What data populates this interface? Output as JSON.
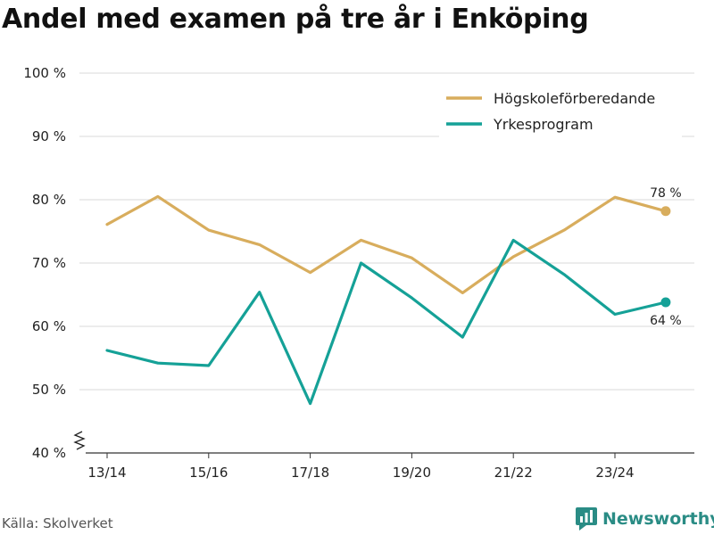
{
  "title": "Andel med examen på tre år i Enköping",
  "source": "Källa: Skolverket",
  "brand": {
    "name": "Newsworthy",
    "icon": "newsworthy-logo-icon",
    "color": "#2a8c85"
  },
  "chart_data": {
    "type": "line",
    "title": "Andel med examen på tre år i Enköping",
    "x": [
      "13/14",
      "14/15",
      "15/16",
      "16/17",
      "17/18",
      "18/19",
      "19/20",
      "20/21",
      "21/22",
      "22/23",
      "23/24",
      "24/25"
    ],
    "x_tick_labels": [
      "13/14",
      "15/16",
      "17/18",
      "19/20",
      "21/22",
      "23/24"
    ],
    "ylim": [
      40,
      100
    ],
    "y_ticks": [
      40,
      50,
      60,
      70,
      80,
      90,
      100
    ],
    "y_tick_suffix": " %",
    "axis_break": true,
    "grid": true,
    "legend_position": "top-right",
    "series": [
      {
        "name": "Högskoleförberedande",
        "color": "#d8ad5d",
        "values": [
          76.1,
          80.5,
          75.2,
          72.9,
          68.5,
          73.6,
          70.8,
          65.3,
          71.0,
          75.2,
          80.4,
          78.2
        ],
        "end_label": "78 %"
      },
      {
        "name": "Yrkesprogram",
        "color": "#15a197",
        "values": [
          56.2,
          54.2,
          53.8,
          65.4,
          47.8,
          70.0,
          64.5,
          58.3,
          73.6,
          68.2,
          61.9,
          63.8
        ],
        "end_label": "64 %"
      }
    ]
  }
}
